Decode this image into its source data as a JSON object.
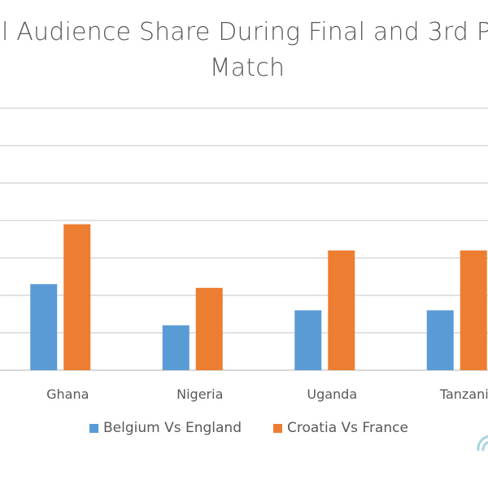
{
  "chart_data": {
    "type": "bar",
    "title_lines": [
      "l Audience Share During Final and 3rd P",
      "Match"
    ],
    "categories": [
      "Ghana",
      "Nigeria",
      "Uganda",
      "Tanzani"
    ],
    "series": [
      {
        "name": "Belgium  Vs England",
        "color": "#5B9BD5",
        "values": [
          2.3,
          1.2,
          1.6,
          1.6
        ]
      },
      {
        "name": "Croatia Vs  France",
        "color": "#ED7D31",
        "values": [
          3.9,
          2.2,
          3.2,
          3.2
        ]
      }
    ],
    "xlabel": "",
    "ylabel": "",
    "ylim": [
      0,
      7
    ],
    "grid": true,
    "legend_position": "bottom"
  }
}
